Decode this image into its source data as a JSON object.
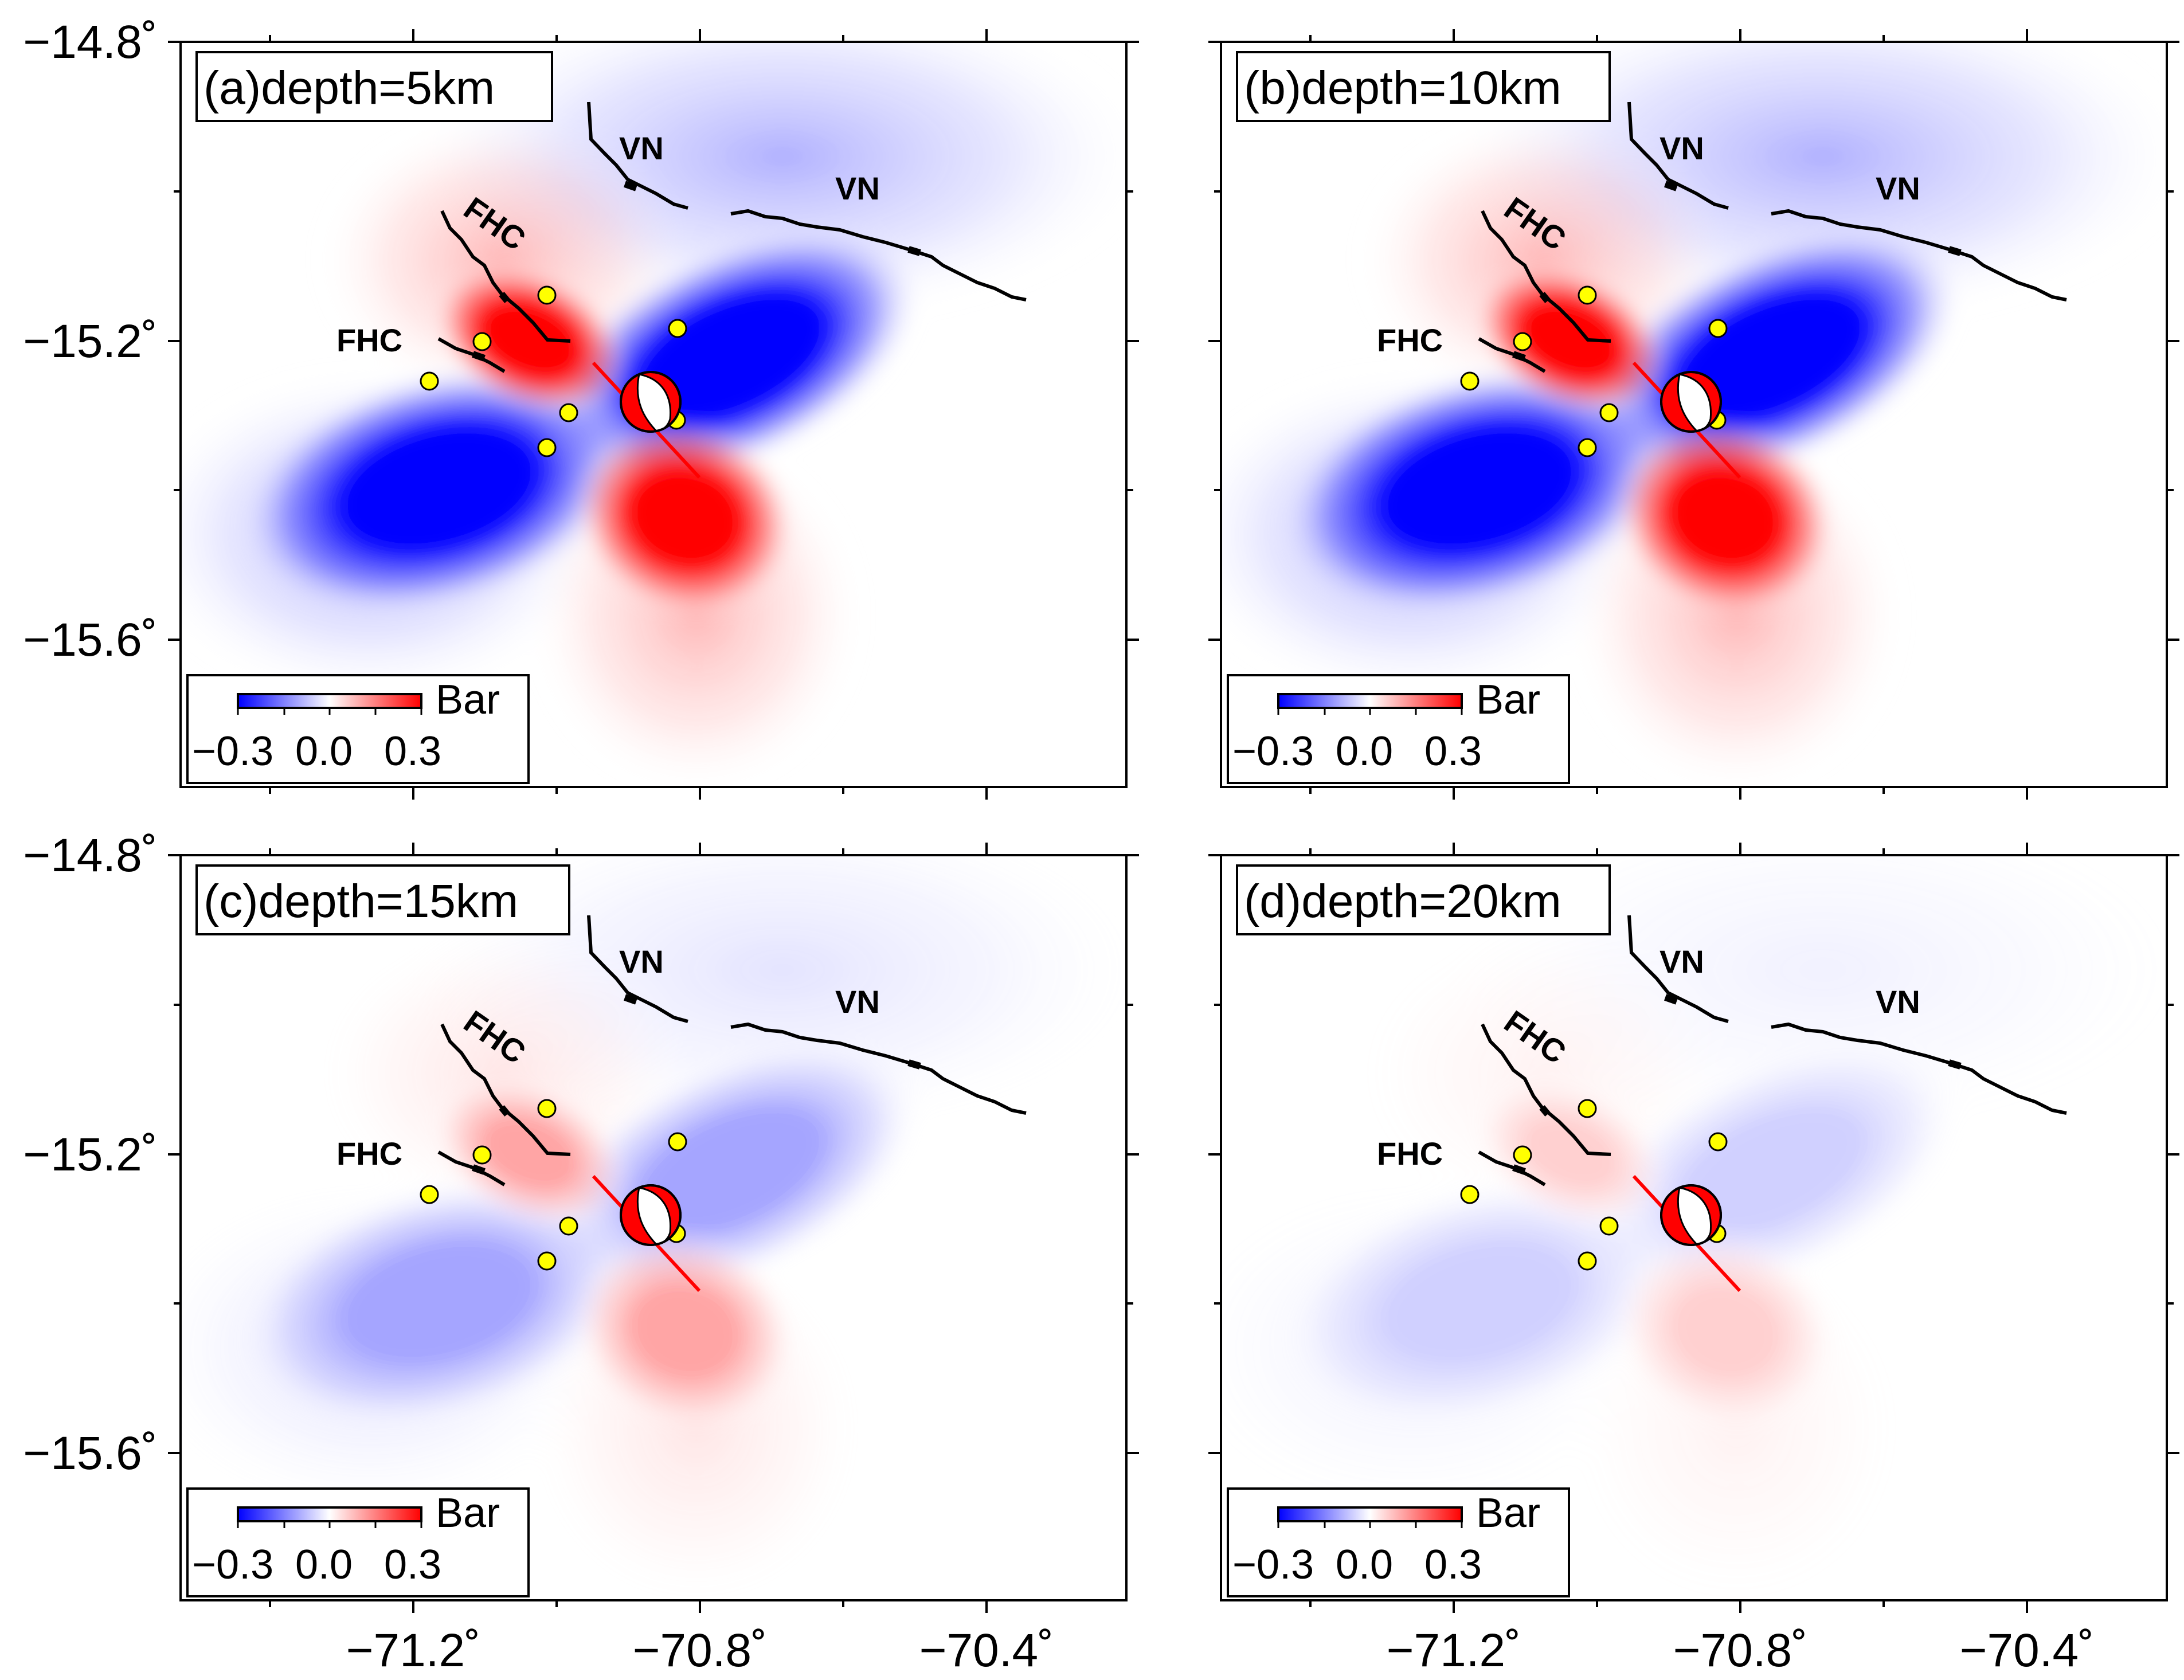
{
  "figure": {
    "lon_ticks": [
      "−71.2˚",
      "−70.8˚",
      "−70.4˚"
    ],
    "lat_ticks": [
      "−14.8˚",
      "−15.2˚",
      "−15.6˚"
    ],
    "colors": {
      "negative": "#0000ff",
      "positive": "#ff0000",
      "fault_line": "#000000",
      "rupture_line": "#ff0000",
      "aftershock_fill": "#ffff00"
    }
  },
  "panels": [
    {
      "label": "(a)depth=5km",
      "intensity": 1.0,
      "colorbar": {
        "unit": "Bar",
        "ticks": [
          "−0.3",
          "0.0",
          "0.3"
        ]
      },
      "fault_labels": {
        "fhc_upper": "FHC",
        "fhc_lower": "FHC",
        "vn_west": "VN",
        "vn_east": "VN"
      },
      "icons": [
        "beachball-icon",
        "aftershock-marker-icon"
      ]
    },
    {
      "label": "(b)depth=10km",
      "intensity": 1.0,
      "colorbar": {
        "unit": "Bar",
        "ticks": [
          "−0.3",
          "0.0",
          "0.3"
        ]
      },
      "fault_labels": {
        "fhc_upper": "FHC",
        "fhc_lower": "FHC",
        "vn_west": "VN",
        "vn_east": "VN"
      },
      "icons": [
        "beachball-icon",
        "aftershock-marker-icon"
      ]
    },
    {
      "label": "(c)depth=15km",
      "intensity": 0.35,
      "colorbar": {
        "unit": "Bar",
        "ticks": [
          "−0.3",
          "0.0",
          "0.3"
        ]
      },
      "fault_labels": {
        "fhc_upper": "FHC",
        "fhc_lower": "FHC",
        "vn_west": "VN",
        "vn_east": "VN"
      },
      "icons": [
        "beachball-icon",
        "aftershock-marker-icon"
      ]
    },
    {
      "label": "(d)depth=20km",
      "intensity": 0.18,
      "colorbar": {
        "unit": "Bar",
        "ticks": [
          "−0.3",
          "0.0",
          "0.3"
        ]
      },
      "fault_labels": {
        "fhc_upper": "FHC",
        "fhc_lower": "FHC",
        "vn_west": "VN",
        "vn_east": "VN"
      },
      "icons": [
        "beachball-icon",
        "aftershock-marker-icon"
      ]
    }
  ]
}
